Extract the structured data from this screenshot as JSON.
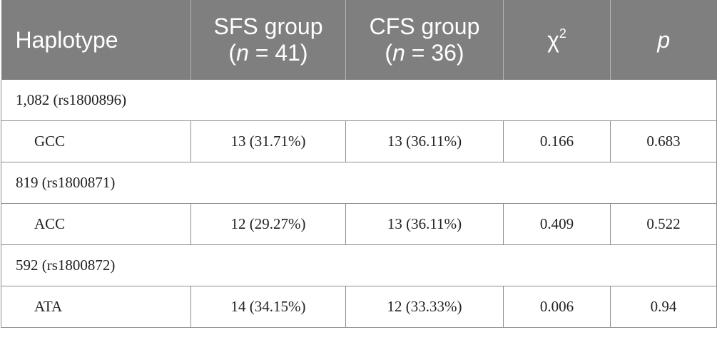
{
  "header": {
    "haplotype": "Haplotype",
    "sfs_label": "SFS group",
    "sfs_n_var": "n",
    "sfs_n_val": " = 41)",
    "cfs_label": "CFS group",
    "cfs_n_var": "n",
    "cfs_n_val": " = 36)",
    "chi": "χ",
    "chi_sup": "2",
    "p": "p"
  },
  "rows": [
    {
      "group": "1,082 (rs1800896)",
      "haplotype": "GCC",
      "sfs": "13 (31.71%)",
      "cfs": "13 (36.11%)",
      "chi2": "0.166",
      "p": "0.683"
    },
    {
      "group": "819 (rs1800871)",
      "haplotype": "ACC",
      "sfs": "12 (29.27%)",
      "cfs": "13 (36.11%)",
      "chi2": "0.409",
      "p": "0.522"
    },
    {
      "group": "592 (rs1800872)",
      "haplotype": "ATA",
      "sfs": "14 (34.15%)",
      "cfs": "12 (33.33%)",
      "chi2": "0.006",
      "p": "0.94"
    }
  ]
}
